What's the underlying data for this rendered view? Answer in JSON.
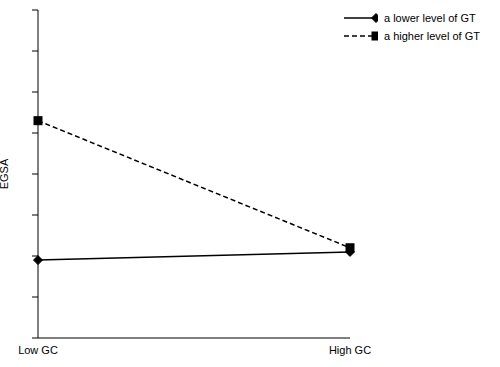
{
  "chart_data": {
    "type": "line",
    "y_label": "EGSA",
    "categories": [
      "Low GC",
      "High GC"
    ],
    "ylim": [
      0,
      8
    ],
    "yticks": [
      0,
      1,
      2,
      3,
      4,
      5,
      6,
      7,
      8
    ],
    "tick_labels": "x",
    "grid": false,
    "legend": "top-right",
    "series": [
      {
        "name": "a lower level of GT",
        "color": "#000000",
        "marker": "diamond",
        "line_style": "solid",
        "values": [
          1.9,
          2.1
        ]
      },
      {
        "name": "a higher level of GT",
        "color": "#000000",
        "marker": "square",
        "line_style": "dashed",
        "values": [
          5.3,
          2.2
        ]
      }
    ]
  }
}
